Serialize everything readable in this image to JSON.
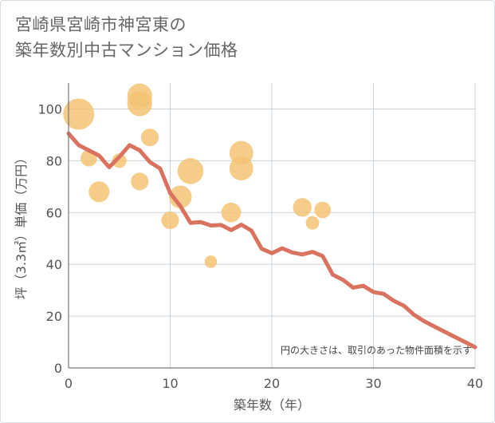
{
  "title_lines": [
    "宮崎県宮崎市神宮東の",
    "築年数別中古マンション価格"
  ],
  "chart_data": {
    "type": "scatter",
    "title": "宮崎県宮崎市神宮東の築年数別中古マンション価格",
    "xlabel": "築年数（年）",
    "ylabel": "坪（3.3㎡）単価（万円）",
    "xlim": [
      0,
      40
    ],
    "ylim": [
      0,
      110
    ],
    "xticks": [
      0,
      10,
      20,
      30,
      40
    ],
    "yticks": [
      0,
      20,
      40,
      60,
      80,
      100
    ],
    "grid": true,
    "note": "円の大きさは、取引のあった物件面積を示す",
    "bubbles": [
      {
        "x": 1,
        "y": 98,
        "size": 3.0
      },
      {
        "x": 2,
        "y": 81,
        "size": 1.6
      },
      {
        "x": 3,
        "y": 68,
        "size": 2.0
      },
      {
        "x": 5,
        "y": 80,
        "size": 1.4
      },
      {
        "x": 7,
        "y": 105,
        "size": 2.4
      },
      {
        "x": 7,
        "y": 102,
        "size": 2.4
      },
      {
        "x": 7,
        "y": 72,
        "size": 1.7
      },
      {
        "x": 8,
        "y": 89,
        "size": 1.7
      },
      {
        "x": 10,
        "y": 57,
        "size": 1.7
      },
      {
        "x": 11,
        "y": 66,
        "size": 2.2
      },
      {
        "x": 12,
        "y": 76,
        "size": 2.5
      },
      {
        "x": 14,
        "y": 41,
        "size": 1.2
      },
      {
        "x": 16,
        "y": 60,
        "size": 1.9
      },
      {
        "x": 17,
        "y": 83,
        "size": 2.3
      },
      {
        "x": 17,
        "y": 77,
        "size": 2.3
      },
      {
        "x": 23,
        "y": 62,
        "size": 1.8
      },
      {
        "x": 24,
        "y": 56,
        "size": 1.3
      },
      {
        "x": 25,
        "y": 61,
        "size": 1.6
      }
    ],
    "trend_line": {
      "x": [
        0,
        1,
        2,
        3,
        4,
        5,
        6,
        7,
        8,
        9,
        10,
        11,
        12,
        13,
        14,
        15,
        16,
        17,
        18,
        19,
        20,
        21,
        22,
        23,
        24,
        25,
        26,
        27,
        28,
        29,
        30,
        31,
        32,
        33,
        34,
        35,
        36,
        37,
        38,
        39,
        40
      ],
      "y": [
        90.5,
        86,
        84,
        82,
        77.5,
        81.5,
        86,
        84,
        79.5,
        77,
        67.5,
        62.5,
        56,
        56.3,
        55,
        55.2,
        53.2,
        55.3,
        53,
        46,
        44.3,
        46.2,
        44.6,
        43.8,
        44.8,
        43.2,
        36,
        34,
        31,
        31.7,
        29.3,
        28.6,
        25.9,
        24,
        20.5,
        18,
        16,
        14,
        12,
        10,
        8
      ]
    },
    "colors": {
      "bubble": "#f5c374",
      "trend": "#d9735f",
      "grid": "#c9d3db",
      "axis": "#777777"
    }
  }
}
